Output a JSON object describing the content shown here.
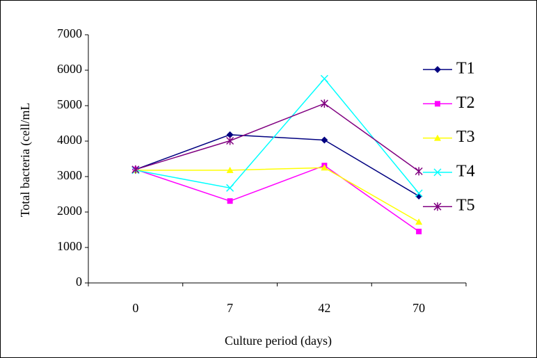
{
  "chart_data": {
    "type": "line",
    "x_label": "Culture period (days)",
    "y_label": "Total bacteria (cell/mL",
    "categories": [
      "0",
      "7",
      "42",
      "70"
    ],
    "series": [
      {
        "name": "T1",
        "color": "#000080",
        "marker": "diamond",
        "values": [
          3200,
          4180,
          4030,
          2450
        ]
      },
      {
        "name": "T2",
        "color": "#ff00ff",
        "marker": "square",
        "values": [
          3200,
          2310,
          3310,
          1450
        ]
      },
      {
        "name": "T3",
        "color": "#ffff00",
        "marker": "triangle",
        "values": [
          3180,
          3180,
          3250,
          1720
        ]
      },
      {
        "name": "T4",
        "color": "#00ffff",
        "marker": "x",
        "values": [
          3180,
          2680,
          5760,
          2530
        ]
      },
      {
        "name": "T5",
        "color": "#800080",
        "marker": "star",
        "values": [
          3200,
          4010,
          5060,
          3150
        ]
      }
    ],
    "ylim": [
      0,
      7000
    ],
    "yticks": [
      0,
      1000,
      2000,
      3000,
      4000,
      5000,
      6000,
      7000
    ],
    "grid": false,
    "legend": "right"
  }
}
